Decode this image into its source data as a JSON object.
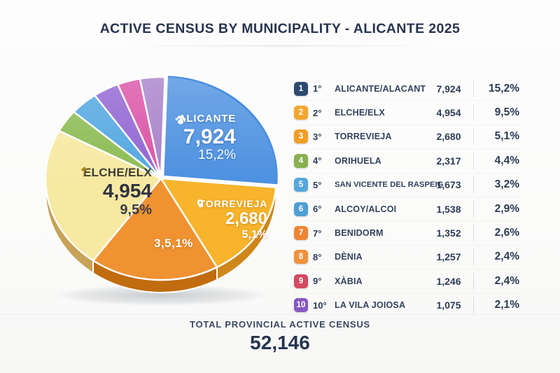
{
  "title": "ACTIVE CENSUS BY MUNICIPALITY - ALICANTE 2025",
  "chart_data": {
    "type": "pie",
    "title": "ACTIVE CENSUS BY MUNICIPALITY - ALICANTE 2025",
    "categories": [
      "ALICANTE/ALACANT",
      "ELCHE/ELX",
      "TORREVIEJA",
      "ORIHUELA",
      "SAN VICENTE DEL RASPEIG",
      "ALCOY/ALCOI",
      "BENIDORM",
      "DÈNIA",
      "XÀBIA",
      "LA VILA JOIOSA"
    ],
    "values": [
      7924,
      4954,
      2680,
      2317,
      1673,
      1538,
      1352,
      1257,
      1246,
      1075
    ],
    "pct_labels": [
      "15,2%",
      "9,5%",
      "5,1%",
      "4,4%",
      "3,2%",
      "2,9%",
      "2,6%",
      "2,4%",
      "2,4%",
      "2,1%"
    ],
    "total": 52146,
    "legend_position": "right ranked list",
    "pie_slices": [
      {
        "name": "ALICANTE",
        "start": 2,
        "end": 95,
        "color": "#4a8fe0",
        "depth_color": "#2e67ad",
        "offset": [
          3,
          -3
        ]
      },
      {
        "name": "TORREVIEJA",
        "start": 95,
        "end": 151,
        "color": "#f7b42c",
        "depth_color": "#d0871a",
        "offset": [
          0,
          0
        ]
      },
      {
        "name": "3,5,1%",
        "start": 151,
        "end": 216,
        "color": "#f09232",
        "depth_color": "#c06c0f",
        "offset": [
          0,
          0
        ]
      },
      {
        "name": "ELCHE/ELX",
        "start": 216,
        "end": 298,
        "color": "#f7e9a2",
        "depth_color": "#c7a257",
        "offset": [
          0,
          0
        ]
      },
      {
        "name": "green",
        "start": 298,
        "end": 311,
        "color": "#8abb51",
        "depth_color": "#5f8d2f",
        "offset": [
          0,
          0
        ]
      },
      {
        "name": "light-blue",
        "start": 311,
        "end": 325,
        "color": "#4fa5e0",
        "depth_color": "#2f7fb5",
        "offset": [
          0,
          0
        ]
      },
      {
        "name": "purple",
        "start": 325,
        "end": 338,
        "color": "#8f62d2",
        "depth_color": "#6a41a6",
        "offset": [
          0,
          0
        ]
      },
      {
        "name": "magenta",
        "start": 338,
        "end": 349.5,
        "color": "#da4fa5",
        "depth_color": "#a82f7c",
        "offset": [
          0,
          0
        ]
      },
      {
        "name": "violet",
        "start": 349.5,
        "end": 362,
        "color": "#a77fc9",
        "depth_color": "#7d569e",
        "offset": [
          0,
          0
        ]
      }
    ],
    "callouts": {
      "alicante": {
        "name": "ALICANTE",
        "value": "7,924",
        "pct": "15,2%",
        "icon": "paw"
      },
      "elche": {
        "name": "ELCHE/ELX",
        "value": "4,954",
        "pct": "9,5%",
        "icon": "palm"
      },
      "torrevieja": {
        "name": "TORREVIEJA",
        "value": "2,680",
        "pct": "5,1%",
        "icon": "map-pin"
      },
      "extra_label": "3,5,1%"
    }
  },
  "ranking": {
    "rows": [
      {
        "rank": "1",
        "ordinal": "1°",
        "name": "ALICANTE/ALACANT",
        "value": "7,924",
        "pct": "15,2%",
        "badge_color": "#2e4a70"
      },
      {
        "rank": "2",
        "ordinal": "2°",
        "name": "ELCHE/ELX",
        "value": "4,954",
        "pct": "9,5%",
        "badge_color": "#f3a72e"
      },
      {
        "rank": "3",
        "ordinal": "3°",
        "name": "TORREVIEJA",
        "value": "2,680",
        "pct": "5,1%",
        "badge_color": "#f29d27"
      },
      {
        "rank": "4",
        "ordinal": "4°",
        "name": "ORIHUELA",
        "value": "2,317",
        "pct": "4,4%",
        "badge_color": "#8ab04f"
      },
      {
        "rank": "5",
        "ordinal": "5°",
        "name": "SAN VICENTE DEL RASPEIG",
        "value": "1,673",
        "pct": "3,2%",
        "badge_color": "#57a7dc"
      },
      {
        "rank": "6",
        "ordinal": "6°",
        "name": "ALCOY/ALCOI",
        "value": "1,538",
        "pct": "2,9%",
        "badge_color": "#4e9fd6"
      },
      {
        "rank": "7",
        "ordinal": "7°",
        "name": "BENIDORM",
        "value": "1,352",
        "pct": "2,6%",
        "badge_color": "#ee8435"
      },
      {
        "rank": "8",
        "ordinal": "8°",
        "name": "DÈNIA",
        "value": "1,257",
        "pct": "2,4%",
        "badge_color": "#f0913c"
      },
      {
        "rank": "9",
        "ordinal": "9°",
        "name": "XÀBIA",
        "value": "1,246",
        "pct": "2,4%",
        "badge_color": "#d44a60"
      },
      {
        "rank": "10",
        "ordinal": "10°",
        "name": "LA VILA JOIOSA",
        "value": "1,075",
        "pct": "2,1%",
        "badge_color": "#8659c2"
      }
    ]
  },
  "footer": {
    "label": "TOTAL PROVINCIAL ACTIVE CENSUS",
    "value": "52,146"
  }
}
